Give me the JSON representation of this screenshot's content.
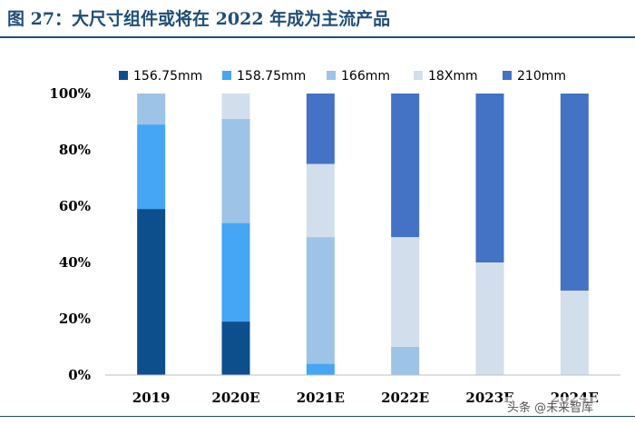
{
  "figure_title": "图 27：大尺寸组件或将在 2022 年成为主流产品",
  "watermark": "头条 @未来智库",
  "chart_data": {
    "type": "bar",
    "stacked": true,
    "categories": [
      "2019",
      "2020E",
      "2021E",
      "2022E",
      "2023E",
      "2024E"
    ],
    "series": [
      {
        "name": "156.75mm",
        "color": "#0d4e8d",
        "values": [
          59,
          19,
          0,
          0,
          0,
          0
        ]
      },
      {
        "name": "158.75mm",
        "color": "#44a6f5",
        "values": [
          30,
          35,
          4,
          0,
          0,
          0
        ]
      },
      {
        "name": "166mm",
        "color": "#9dc3e6",
        "values": [
          11,
          37,
          45,
          10,
          0,
          0
        ]
      },
      {
        "name": "18Xmm",
        "color": "#d2deec",
        "values": [
          0,
          9,
          26,
          39,
          40,
          30
        ]
      },
      {
        "name": "210mm",
        "color": "#4472c4",
        "values": [
          0,
          0,
          25,
          51,
          60,
          70
        ]
      }
    ],
    "yticks": [
      "0%",
      "20%",
      "40%",
      "60%",
      "80%",
      "100%"
    ],
    "ylim": [
      0,
      100
    ],
    "legend_position": "top",
    "xlabel": "",
    "ylabel": ""
  }
}
